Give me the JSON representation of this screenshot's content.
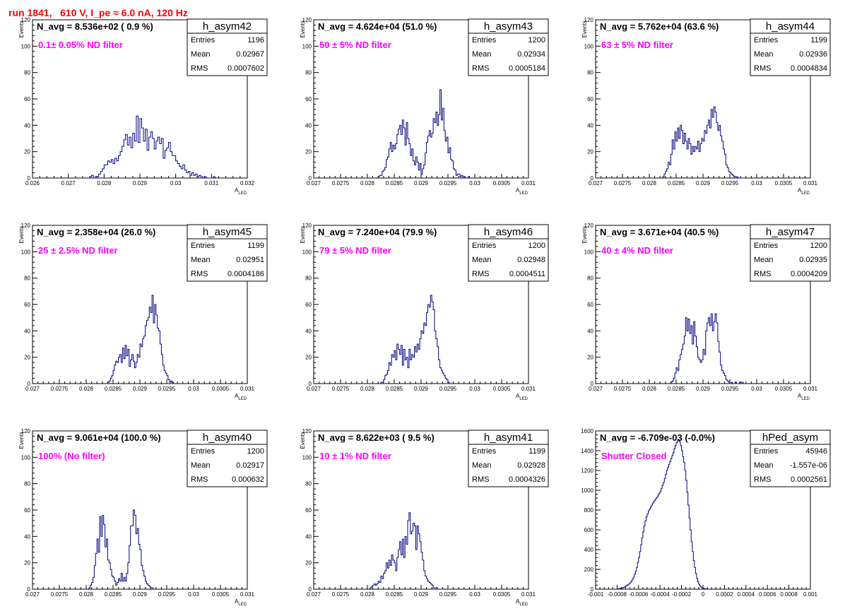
{
  "title": "run 1841,   610 V, I_pe ≈ 6.0 nA, 120 Hz",
  "colors": {
    "title": "#ff0000",
    "annotation": "#ff00ff",
    "line": "#000080",
    "axis": "#000000"
  },
  "chart_data": [
    {
      "type": "bar",
      "histname": "h_asym42",
      "navg": "N_avg = 8.536e+02 ( 0.9 %)",
      "filter": "0.1± 0.05% ND filter",
      "stats": {
        "Entries": "1196",
        "Mean": "0.02967",
        "RMS": "0.0007602"
      },
      "ylabel": "Events",
      "xlabel": "A",
      "xlabel_sub": "LED",
      "xlim": [
        0.026,
        0.032
      ],
      "ylim": [
        0,
        120
      ],
      "xticks": [
        "0.026",
        "0.027",
        "0.028",
        "0.029",
        "0.03",
        "0.031",
        "0.032"
      ],
      "yticks": [
        "0",
        "20",
        "40",
        "60",
        "80",
        "100",
        "120"
      ],
      "bin_start": 0.0276,
      "bin_width": 5e-05,
      "values": [
        1,
        2,
        0,
        1,
        1,
        3,
        5,
        7,
        10,
        10,
        13,
        12,
        14,
        11,
        15,
        13,
        17,
        20,
        24,
        29,
        33,
        25,
        31,
        23,
        34,
        28,
        47,
        27,
        45,
        38,
        28,
        37,
        21,
        31,
        35,
        30,
        22,
        28,
        31,
        26,
        30,
        15,
        21,
        23,
        27,
        20,
        17,
        17,
        13,
        11,
        9,
        7,
        10,
        6,
        4,
        5,
        2,
        4,
        2,
        3,
        1,
        2,
        1,
        0,
        1,
        0,
        0,
        0,
        0,
        1
      ]
    },
    {
      "type": "bar",
      "histname": "h_asym43",
      "navg": "N_avg = 4.624e+04 (51.0 %)",
      "filter": "50 ± 5% ND filter",
      "stats": {
        "Entries": "1200",
        "Mean": "0.02934",
        "RMS": "0.0005184"
      },
      "ylabel": "Events",
      "xlabel": "A",
      "xlabel_sub": "LED",
      "xlim": [
        0.027,
        0.031
      ],
      "ylim": [
        0,
        120
      ],
      "xticks": [
        "0.027",
        "0.0275",
        "0.028",
        "0.0285",
        "0.029",
        "0.0295",
        "0.03",
        "0.0305",
        "0.031"
      ],
      "yticks": [
        "0",
        "20",
        "40",
        "60",
        "80",
        "100",
        "120"
      ],
      "bin_start": 0.0282,
      "bin_width": 2.5e-05,
      "values": [
        1,
        2,
        2,
        5,
        6,
        8,
        14,
        16,
        22,
        27,
        20,
        25,
        22,
        26,
        33,
        37,
        40,
        33,
        44,
        38,
        25,
        42,
        30,
        26,
        17,
        22,
        13,
        10,
        16,
        12,
        6,
        11,
        3,
        7,
        10,
        19,
        27,
        32,
        36,
        31,
        34,
        45,
        42,
        50,
        40,
        48,
        67,
        44,
        53,
        36,
        28,
        31,
        19,
        23,
        14,
        13,
        7,
        6,
        2,
        3,
        3,
        1,
        2,
        0,
        1,
        0,
        0,
        1
      ]
    },
    {
      "type": "bar",
      "histname": "h_asym44",
      "navg": "N_avg = 5.762e+04 (63.6 %)",
      "filter": "63 ± 5% ND filter",
      "stats": {
        "Entries": "1199",
        "Mean": "0.02936",
        "RMS": "0.0004834"
      },
      "ylabel": "Events",
      "xlabel": "A",
      "xlabel_sub": "LED",
      "xlim": [
        0.027,
        0.031
      ],
      "ylim": [
        0,
        120
      ],
      "xticks": [
        "0.027",
        "0.0275",
        "0.028",
        "0.0285",
        "0.029",
        "0.0295",
        "0.03",
        "0.0305",
        "0.031"
      ],
      "yticks": [
        "0",
        "20",
        "40",
        "60",
        "80",
        "100",
        "120"
      ],
      "bin_start": 0.02825,
      "bin_width": 2.5e-05,
      "values": [
        1,
        3,
        5,
        7,
        12,
        10,
        18,
        29,
        22,
        35,
        28,
        38,
        30,
        40,
        36,
        26,
        34,
        28,
        22,
        30,
        26,
        18,
        24,
        20,
        24,
        22,
        28,
        20,
        26,
        30,
        28,
        36,
        34,
        40,
        44,
        38,
        52,
        46,
        54,
        50,
        42,
        36,
        40,
        32,
        28,
        22,
        18,
        10,
        8,
        5,
        4,
        3,
        2,
        1,
        0,
        1
      ]
    },
    {
      "type": "bar",
      "histname": "h_asym45",
      "navg": "N_avg = 2.358e+04 (26.0 %)",
      "filter": "25 ± 2.5% ND filter",
      "stats": {
        "Entries": "1199",
        "Mean": "0.02951",
        "RMS": "0.0004186"
      },
      "ylabel": "Events",
      "xlabel": "A",
      "xlabel_sub": "LED",
      "xlim": [
        0.027,
        0.031
      ],
      "ylim": [
        0,
        120
      ],
      "xticks": [
        "0.027",
        "0.0275",
        "0.028",
        "0.0285",
        "0.029",
        "0.0295",
        "0.03",
        "0.0305",
        "0.031"
      ],
      "yticks": [
        "0",
        "20",
        "40",
        "60",
        "80",
        "100",
        "120"
      ],
      "bin_start": 0.0284,
      "bin_width": 2.5e-05,
      "values": [
        1,
        2,
        4,
        6,
        10,
        14,
        17,
        16,
        20,
        22,
        16,
        27,
        19,
        29,
        21,
        26,
        13,
        18,
        22,
        17,
        12,
        16,
        22,
        20,
        30,
        28,
        34,
        36,
        44,
        48,
        50,
        58,
        54,
        67,
        46,
        60,
        52,
        42,
        40,
        30,
        22,
        14,
        10,
        8,
        6,
        3,
        1,
        2,
        1
      ]
    },
    {
      "type": "bar",
      "histname": "h_asym46",
      "navg": "N_avg = 7.240e+04 (79.9 %)",
      "filter": "79 ± 5% ND filter",
      "stats": {
        "Entries": "1200",
        "Mean": "0.02948",
        "RMS": "0.0004511"
      },
      "ylabel": "Events",
      "xlabel": "A",
      "xlabel_sub": "LED",
      "xlim": [
        0.027,
        0.031
      ],
      "ylim": [
        0,
        120
      ],
      "xticks": [
        "0.027",
        "0.0275",
        "0.028",
        "0.0285",
        "0.029",
        "0.0295",
        "0.03",
        "0.0305",
        "0.031"
      ],
      "yticks": [
        "0",
        "20",
        "40",
        "60",
        "80",
        "100",
        "120"
      ],
      "bin_start": 0.02825,
      "bin_width": 2.5e-05,
      "values": [
        1,
        1,
        3,
        6,
        7,
        10,
        16,
        14,
        22,
        20,
        25,
        18,
        30,
        26,
        22,
        29,
        14,
        26,
        18,
        20,
        12,
        26,
        18,
        22,
        20,
        28,
        24,
        30,
        26,
        34,
        40,
        38,
        46,
        44,
        54,
        60,
        58,
        67,
        62,
        56,
        40,
        34,
        28,
        18,
        12,
        10,
        8,
        6,
        4,
        3,
        1
      ]
    },
    {
      "type": "bar",
      "histname": "h_asym47",
      "navg": "N_avg = 3.671e+04 (40.5 %)",
      "filter": "40 ± 4% ND filter",
      "stats": {
        "Entries": "1200",
        "Mean": "0.02935",
        "RMS": "0.0004209"
      },
      "ylabel": "Events",
      "xlabel": "A",
      "xlabel_sub": "LED",
      "xlim": [
        0.027,
        0.031
      ],
      "ylim": [
        0,
        120
      ],
      "xticks": [
        "0.027",
        "0.0275",
        "0.028",
        "0.0285",
        "0.029",
        "0.0295",
        "0.03",
        "0.0305",
        "0.031"
      ],
      "yticks": [
        "0",
        "20",
        "40",
        "60",
        "80",
        "100",
        "120"
      ],
      "bin_start": 0.0284,
      "bin_width": 2.5e-05,
      "values": [
        1,
        2,
        4,
        8,
        12,
        10,
        18,
        22,
        26,
        30,
        36,
        50,
        40,
        49,
        38,
        44,
        30,
        47,
        36,
        28,
        20,
        18,
        16,
        18,
        26,
        22,
        40,
        46,
        50,
        44,
        53,
        40,
        47,
        53,
        46,
        32,
        24,
        14,
        10,
        8,
        6,
        3,
        2,
        1,
        0,
        1,
        0,
        0,
        1,
        0,
        0,
        1,
        0,
        1
      ]
    },
    {
      "type": "bar",
      "histname": "h_asym40",
      "navg": "N_avg = 9.061e+04 (100.0 %)",
      "filter": "100% (No filter)",
      "stats": {
        "Entries": "1200",
        "Mean": "0.02917",
        "RMS": "0.000632"
      },
      "ylabel": "Events",
      "xlabel": "A",
      "xlabel_sub": "LED",
      "xlim": [
        0.027,
        0.031
      ],
      "ylim": [
        0,
        120
      ],
      "xticks": [
        "0.027",
        "0.0275",
        "0.028",
        "0.0285",
        "0.029",
        "0.0295",
        "0.03",
        "0.0305",
        "0.031"
      ],
      "yticks": [
        "0",
        "20",
        "40",
        "60",
        "80",
        "100",
        "120"
      ],
      "bin_start": 0.02805,
      "bin_width": 2.5e-05,
      "values": [
        1,
        3,
        5,
        9,
        18,
        27,
        38,
        28,
        55,
        40,
        56,
        49,
        32,
        38,
        22,
        20,
        15,
        10,
        9,
        6,
        3,
        5,
        8,
        6,
        12,
        6,
        9,
        6,
        12,
        20,
        33,
        48,
        48,
        60,
        56,
        42,
        46,
        34,
        30,
        18,
        14,
        10,
        6,
        4,
        3,
        2,
        1,
        1
      ]
    },
    {
      "type": "bar",
      "histname": "h_asym41",
      "navg": "N_avg = 8.622e+03 ( 9.5 %)",
      "filter": "10 ± 1% ND filter",
      "stats": {
        "Entries": "1199",
        "Mean": "0.02928",
        "RMS": "0.0004326"
      },
      "ylabel": "Events",
      "xlabel": "A",
      "xlabel_sub": "LED",
      "xlim": [
        0.027,
        0.031
      ],
      "ylim": [
        0,
        120
      ],
      "xticks": [
        "0.027",
        "0.0275",
        "0.028",
        "0.0285",
        "0.029",
        "0.0295",
        "0.03",
        "0.0305",
        "0.031"
      ],
      "yticks": [
        "0",
        "20",
        "40",
        "60",
        "80",
        "100",
        "120"
      ],
      "bin_start": 0.02805,
      "bin_width": 2.5e-05,
      "values": [
        1,
        2,
        3,
        4,
        3,
        4,
        6,
        5,
        10,
        8,
        12,
        14,
        20,
        16,
        22,
        18,
        26,
        22,
        20,
        14,
        24,
        30,
        36,
        26,
        38,
        24,
        40,
        34,
        52,
        58,
        42,
        44,
        50,
        48,
        30,
        48,
        42,
        36,
        28,
        22,
        14,
        10,
        8,
        6,
        5,
        4,
        3,
        1,
        1,
        1
      ]
    },
    {
      "type": "bar",
      "histname": "hPed_asym",
      "navg": "N_avg = -6.709e-03 (-0.0%)",
      "filter": "Shutter Closed",
      "stats": {
        "Entries": "45946",
        "Mean": "-1.557e-06",
        "RMS": "0.0002561"
      },
      "ylabel": "",
      "xlabel": "",
      "xlabel_sub": "",
      "xlim": [
        -0.001,
        0.001
      ],
      "ylim": [
        0,
        1600
      ],
      "xticks": [
        "-0.001",
        "-0.0008",
        "-0.0006",
        "-0.0004",
        "-0.0002",
        "0",
        "0.0002",
        "0.0004",
        "0.0006",
        "0.0008",
        "0.001"
      ],
      "yticks": [
        "0",
        "200",
        "400",
        "600",
        "800",
        "1000",
        "1200",
        "1400",
        "1600"
      ],
      "bin_start": -0.0008,
      "bin_width": 1e-05,
      "values": [
        2,
        3,
        5,
        8,
        10,
        14,
        18,
        24,
        30,
        38,
        45,
        55,
        65,
        80,
        100,
        120,
        150,
        180,
        220,
        270,
        320,
        380,
        450,
        520,
        580,
        640,
        690,
        730,
        760,
        790,
        810,
        830,
        850,
        870,
        890,
        900,
        920,
        930,
        950,
        970,
        990,
        1020,
        1050,
        1080,
        1120,
        1160,
        1200,
        1230,
        1260,
        1290,
        1320,
        1350,
        1380,
        1420,
        1450,
        1480,
        1500,
        1510,
        1490,
        1450,
        1400,
        1340,
        1280,
        1200,
        1100,
        980,
        850,
        720,
        600,
        480,
        380,
        290,
        220,
        160,
        110,
        75,
        50,
        32,
        20,
        13,
        8,
        5,
        3,
        2,
        1
      ]
    }
  ]
}
